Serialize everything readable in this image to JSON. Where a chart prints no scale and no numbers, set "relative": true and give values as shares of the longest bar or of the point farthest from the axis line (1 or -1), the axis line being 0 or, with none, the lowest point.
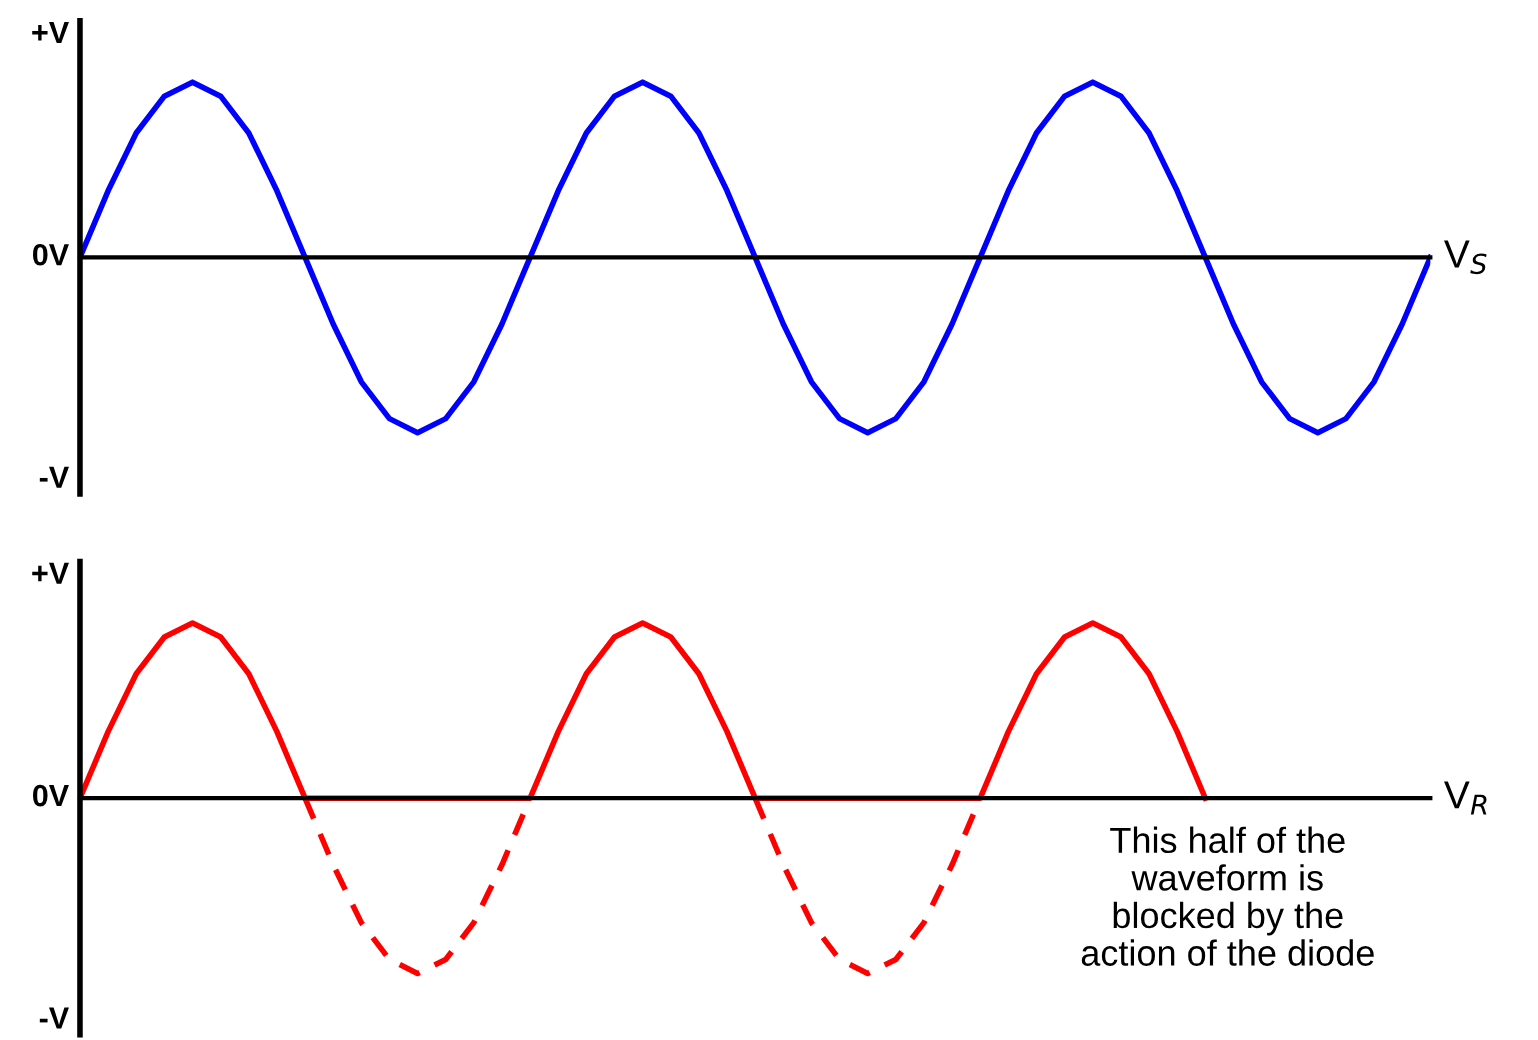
{
  "chart_data": [
    {
      "type": "line",
      "relative": true,
      "categories": [
        null,
        null,
        null,
        null,
        null,
        null,
        null,
        null,
        null,
        null,
        null,
        null,
        null,
        null,
        null,
        null,
        null,
        null,
        null,
        null,
        null,
        null,
        null,
        null,
        null,
        null,
        null,
        null,
        null,
        null,
        null,
        null,
        null,
        null,
        null,
        null,
        null,
        null,
        null,
        null,
        null,
        null,
        null,
        null,
        null,
        null,
        null,
        null,
        null
      ],
      "series": [
        {
          "color": "#0000ff",
          "line_style": "solid",
          "values": [
            0,
            0.38,
            0.71,
            0.92,
            1,
            0.92,
            0.71,
            0.38,
            0,
            -0.38,
            -0.71,
            -0.92,
            -1,
            -0.92,
            -0.71,
            -0.38,
            0,
            0.38,
            0.71,
            0.92,
            1,
            0.92,
            0.71,
            0.38,
            0,
            -0.38,
            -0.71,
            -0.92,
            -1,
            -0.92,
            -0.71,
            -0.38,
            0,
            0.38,
            0.71,
            0.92,
            1,
            0.92,
            0.71,
            0.38,
            0,
            -0.38,
            -0.71,
            -0.92,
            -1,
            -0.92,
            -0.71,
            -0.38,
            0
          ]
        }
      ],
      "annotations": [
        "+V",
        "0V",
        "-V"
      ],
      "xlabel": "V$_{S}$",
      "grid": false,
      "legend": false,
      "marker": "none"
    },
    {
      "type": "line",
      "relative": true,
      "categories": [
        null,
        null,
        null,
        null,
        null,
        null,
        null,
        null,
        null,
        null,
        null,
        null,
        null,
        null,
        null,
        null,
        null,
        null,
        null,
        null,
        null,
        null,
        null,
        null,
        null,
        null,
        null,
        null,
        null,
        null,
        null,
        null,
        null,
        null,
        null,
        null,
        null,
        null,
        null,
        null,
        null,
        null,
        null,
        null,
        null,
        null,
        null,
        null,
        null
      ],
      "series": [
        {
          "color": "#ff0000",
          "line_style": "solid",
          "values": [
            0,
            0.38,
            0.71,
            0.92,
            1,
            0.92,
            0.71,
            0.38,
            0,
            0,
            0,
            0,
            0,
            0,
            0,
            0,
            0,
            0.38,
            0.71,
            0.92,
            1,
            0.92,
            0.71,
            0.38,
            0,
            0,
            0,
            0,
            0,
            0,
            0,
            0,
            0,
            0.38,
            0.71,
            0.92,
            1,
            0.92,
            0.71,
            0.38,
            0,
            null,
            null,
            null,
            null,
            null,
            null,
            null,
            null
          ]
        },
        {
          "color": "#ff0000",
          "line_style": "dashed",
          "values": [
            null,
            null,
            null,
            null,
            null,
            null,
            null,
            null,
            0,
            -0.38,
            -0.71,
            -0.92,
            -1,
            -0.92,
            -0.71,
            -0.38,
            0,
            null,
            null,
            null,
            null,
            null,
            null,
            null,
            0,
            -0.38,
            -0.71,
            -0.92,
            -1,
            -0.92,
            -0.71,
            -0.38,
            0,
            null,
            null,
            null,
            null,
            null,
            null,
            null,
            null,
            null,
            null,
            null,
            null,
            null,
            null,
            null,
            null
          ]
        }
      ],
      "annotations": [
        "+V",
        "0V",
        "-V",
        "This half of the\nwaveform is\nblocked by the\naction of the diode"
      ],
      "xlabel": "V$_{R}$",
      "grid": false,
      "legend": false,
      "marker": "none"
    }
  ]
}
